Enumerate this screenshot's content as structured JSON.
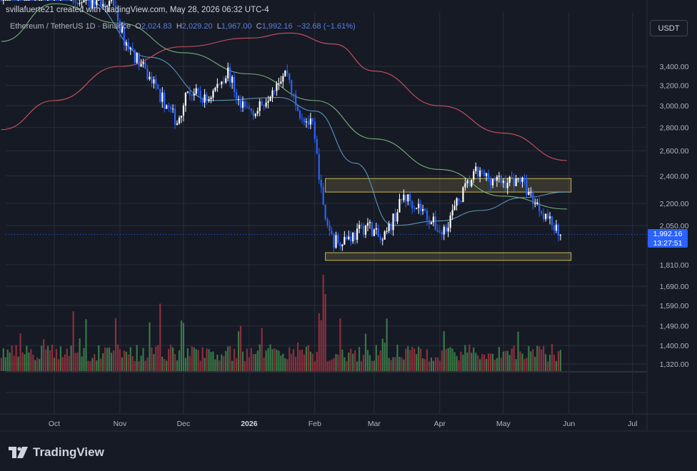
{
  "header": {
    "published_by": "svillafuerte21 created with TradingView.com, May 28, 2026 06:32 UTC-4"
  },
  "legend": {
    "symbol": "Ethereum / TetherUS 1D · Binance",
    "open_label": "O",
    "open": "2,024.83",
    "high_label": "H",
    "high": "2,029.20",
    "low_label": "L",
    "low": "1,967.00",
    "close_label": "C",
    "close": "1,992.16",
    "change": "−32.68 (−1.61%)"
  },
  "currency_button": "USDT",
  "price_tag": {
    "price": "1,992.16",
    "countdown": "13:27:51"
  },
  "brand": "TradingView",
  "colors": {
    "background": "#161a25",
    "grid": "#2a2e39",
    "candle_up": "#ffffff",
    "candle_down": "#2962ff",
    "volume_up": "#3e8a4c",
    "volume_down": "#a03441",
    "ma_short": "#5fa3c9",
    "ma_mid": "#7fbf7f",
    "ma_long": "#e05a64",
    "zone": "#c8b85a"
  },
  "chart_data": {
    "type": "candlestick",
    "y_axis_scale": "log",
    "ylim": [
      1300,
      4200
    ],
    "y_ticks": [
      "3,400.00",
      "3,200.00",
      "3,000.00",
      "2,800.00",
      "2,600.00",
      "2,400.00",
      "2,200.00",
      "2,050.00",
      "1,810.00",
      "1,690.00",
      "1,590.00",
      "1,490.00",
      "1,400.00",
      "1,320.00"
    ],
    "y_tick_values": [
      3400,
      3200,
      3000,
      2800,
      2600,
      2400,
      2200,
      2050,
      1810,
      1690,
      1590,
      1490,
      1400,
      1320
    ],
    "x_ticks": [
      "Oct",
      "Nov",
      "Dec",
      "2026",
      "Feb",
      "Mar",
      "Apr",
      "May",
      "Jun",
      "Jul"
    ],
    "x_tick_dates": [
      "2025-10-01",
      "2025-11-01",
      "2025-12-01",
      "2026-01-01",
      "2026-02-01",
      "2026-03-01",
      "2026-04-01",
      "2026-05-01",
      "2026-06-01",
      "2026-07-01"
    ],
    "last_close": 1992.16,
    "price_path_anchors": [
      {
        "date": "2025-09-06",
        "close": 4300
      },
      {
        "date": "2025-10-01",
        "close": 4450
      },
      {
        "date": "2025-10-10",
        "close": 4150
      },
      {
        "date": "2025-10-28",
        "close": 4200
      },
      {
        "date": "2025-11-03",
        "close": 3700
      },
      {
        "date": "2025-11-10",
        "close": 3450
      },
      {
        "date": "2025-11-20",
        "close": 3100
      },
      {
        "date": "2025-11-28",
        "close": 2850
      },
      {
        "date": "2025-12-03",
        "close": 3150
      },
      {
        "date": "2025-12-12",
        "close": 3050
      },
      {
        "date": "2025-12-22",
        "close": 3350
      },
      {
        "date": "2025-12-28",
        "close": 2980
      },
      {
        "date": "2026-01-05",
        "close": 2950
      },
      {
        "date": "2026-01-14",
        "close": 3250
      },
      {
        "date": "2026-01-19",
        "close": 3350
      },
      {
        "date": "2026-01-23",
        "close": 2980
      },
      {
        "date": "2026-01-31",
        "close": 2800
      },
      {
        "date": "2026-02-06",
        "close": 2100
      },
      {
        "date": "2026-02-10",
        "close": 1950
      },
      {
        "date": "2026-02-20",
        "close": 1990
      },
      {
        "date": "2026-02-26",
        "close": 2060
      },
      {
        "date": "2026-03-05",
        "close": 1940
      },
      {
        "date": "2026-03-15",
        "close": 2250
      },
      {
        "date": "2026-03-22",
        "close": 2180
      },
      {
        "date": "2026-04-02",
        "close": 2000
      },
      {
        "date": "2026-04-12",
        "close": 2280
      },
      {
        "date": "2026-04-18",
        "close": 2420
      },
      {
        "date": "2026-05-01",
        "close": 2350
      },
      {
        "date": "2026-05-09",
        "close": 2380
      },
      {
        "date": "2026-05-14",
        "close": 2250
      },
      {
        "date": "2026-05-21",
        "close": 2120
      },
      {
        "date": "2026-05-28",
        "close": 1992
      }
    ],
    "zones": [
      {
        "from": "2026-02-06",
        "to": "2026-06-02",
        "low": 2280,
        "high": 2380
      },
      {
        "from": "2026-02-06",
        "to": "2026-06-02",
        "low": 1835,
        "high": 1880
      }
    ],
    "moving_averages": {
      "ma_short": [
        {
          "date": "2025-09-06",
          "value": 4300
        },
        {
          "date": "2025-10-15",
          "value": 4200
        },
        {
          "date": "2025-11-15",
          "value": 3500
        },
        {
          "date": "2025-12-15",
          "value": 3050
        },
        {
          "date": "2026-01-15",
          "value": 3080
        },
        {
          "date": "2026-02-01",
          "value": 2950
        },
        {
          "date": "2026-02-20",
          "value": 2500
        },
        {
          "date": "2026-03-10",
          "value": 2050
        },
        {
          "date": "2026-04-01",
          "value": 2080
        },
        {
          "date": "2026-04-20",
          "value": 2150
        },
        {
          "date": "2026-05-10",
          "value": 2240
        },
        {
          "date": "2026-05-31",
          "value": 2280
        }
      ],
      "ma_mid": [
        {
          "date": "2025-09-06",
          "value": 3680
        },
        {
          "date": "2025-10-01",
          "value": 4150
        },
        {
          "date": "2025-11-01",
          "value": 3900
        },
        {
          "date": "2025-12-01",
          "value": 3550
        },
        {
          "date": "2026-01-01",
          "value": 3320
        },
        {
          "date": "2026-02-01",
          "value": 3050
        },
        {
          "date": "2026-03-01",
          "value": 2700
        },
        {
          "date": "2026-04-01",
          "value": 2450
        },
        {
          "date": "2026-05-01",
          "value": 2250
        },
        {
          "date": "2026-05-31",
          "value": 2160
        }
      ],
      "ma_long": [
        {
          "date": "2025-09-06",
          "value": 2780
        },
        {
          "date": "2025-10-01",
          "value": 3050
        },
        {
          "date": "2025-11-01",
          "value": 3400
        },
        {
          "date": "2025-12-01",
          "value": 3620
        },
        {
          "date": "2026-01-01",
          "value": 3720
        },
        {
          "date": "2026-01-20",
          "value": 3780
        },
        {
          "date": "2026-02-10",
          "value": 3650
        },
        {
          "date": "2026-03-01",
          "value": 3350
        },
        {
          "date": "2026-04-01",
          "value": 3000
        },
        {
          "date": "2026-05-01",
          "value": 2750
        },
        {
          "date": "2026-05-31",
          "value": 2520
        }
      ]
    },
    "volume_spikes": [
      {
        "date": "2025-10-10",
        "relative": 0.62
      },
      {
        "date": "2025-10-30",
        "relative": 0.55
      },
      {
        "date": "2025-11-20",
        "relative": 0.7
      },
      {
        "date": "2025-12-01",
        "relative": 0.5
      },
      {
        "date": "2026-02-03",
        "relative": 0.6
      },
      {
        "date": "2026-02-05",
        "relative": 1.0
      },
      {
        "date": "2026-02-06",
        "relative": 0.8
      }
    ]
  }
}
